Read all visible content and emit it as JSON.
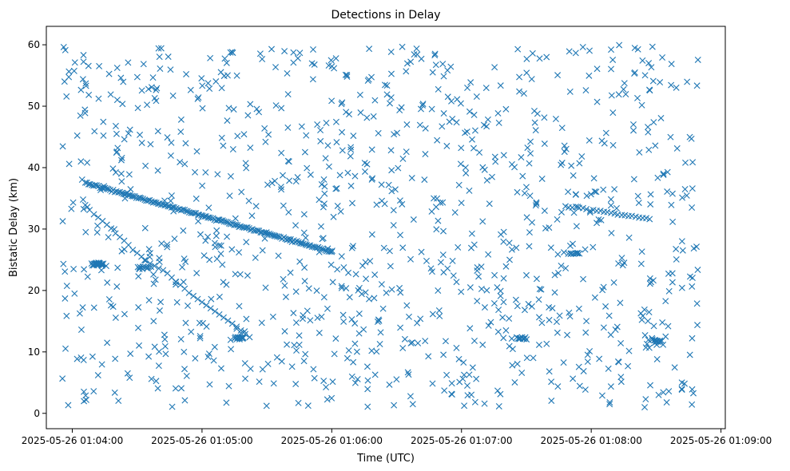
{
  "chart_data": {
    "type": "scatter",
    "title": "Detections in Delay",
    "xlabel": "Time (UTC)",
    "ylabel": "Bistatic Delay (km)",
    "xlim": [
      "2025-05-26 01:03:48",
      "2025-05-26 01:09:02"
    ],
    "ylim": [
      -2.5,
      63
    ],
    "x_ticks": [
      "2025-05-26 01:04:00",
      "2025-05-26 01:05:00",
      "2025-05-26 01:06:00",
      "2025-05-26 01:07:00",
      "2025-05-26 01:08:00",
      "2025-05-26 01:09:00"
    ],
    "y_ticks": [
      0,
      10,
      20,
      30,
      40,
      50,
      60
    ],
    "marker": "x",
    "color": "#1f77b4",
    "grid": false,
    "series": [
      {
        "name": "",
        "points": [
          [
            "01:04:04",
            41
          ],
          [
            "01:04:05",
            34.8
          ],
          [
            "01:04:06",
            33.9
          ],
          [
            "01:04:07",
            33.6
          ],
          [
            "01:04:08",
            33.1
          ],
          [
            "01:04:10",
            32.4
          ],
          [
            "01:04:12",
            31.9
          ],
          [
            "01:04:14",
            31.3
          ],
          [
            "01:04:16",
            30.7
          ],
          [
            "01:04:18",
            30.1
          ],
          [
            "01:04:20",
            29.3
          ],
          [
            "01:04:22",
            28.7
          ],
          [
            "01:04:24",
            28.1
          ],
          [
            "01:04:26",
            27.4
          ],
          [
            "01:04:28",
            26.6
          ],
          [
            "01:04:30",
            26.1
          ],
          [
            "01:04:32",
            25.5
          ],
          [
            "01:04:34",
            24.9
          ],
          [
            "01:04:36",
            24.4
          ],
          [
            "01:04:38",
            24
          ],
          [
            "01:04:40",
            23.6
          ],
          [
            "01:04:42",
            23.3
          ],
          [
            "01:04:44",
            22.8
          ],
          [
            "01:04:46",
            22.1
          ],
          [
            "01:04:48",
            21.4
          ],
          [
            "01:04:50",
            20.9
          ],
          [
            "01:04:52",
            20.3
          ],
          [
            "01:04:54",
            19.6
          ],
          [
            "01:04:56",
            19.1
          ],
          [
            "01:04:58",
            18.6
          ],
          [
            "01:05:00",
            18.1
          ],
          [
            "01:05:02",
            17.6
          ],
          [
            "01:05:04",
            17.1
          ],
          [
            "01:05:06",
            16.6
          ],
          [
            "01:05:08",
            16.1
          ],
          [
            "01:05:10",
            15.6
          ],
          [
            "01:05:12",
            15.1
          ],
          [
            "01:05:14",
            14.6
          ],
          [
            "01:05:16",
            14.1
          ],
          [
            "01:05:18",
            13.5
          ],
          [
            "01:05:20",
            12.9
          ],
          [
            "01:05:22",
            12.4
          ]
        ]
      }
    ],
    "track_segments": [
      {
        "start": [
          "01:04:06",
          37.5
        ],
        "end": [
          "01:06:00",
          26.3
        ],
        "count": 150
      },
      {
        "start": [
          "01:07:48",
          33.8
        ],
        "end": [
          "01:08:27",
          31.6
        ],
        "count": 25
      }
    ],
    "clusters": [
      {
        "center": [
          "01:04:12",
          24.3
        ],
        "count": 30
      },
      {
        "center": [
          "01:04:33",
          23.7
        ],
        "count": 10
      },
      {
        "center": [
          "01:05:17",
          12.3
        ],
        "count": 12
      },
      {
        "center": [
          "01:07:27",
          12.2
        ],
        "count": 12
      },
      {
        "center": [
          "01:07:52",
          26.0
        ],
        "count": 10
      },
      {
        "center": [
          "01:08:30",
          11.8
        ],
        "count": 14
      }
    ],
    "seed": 20250526,
    "background_points": 1050
  }
}
